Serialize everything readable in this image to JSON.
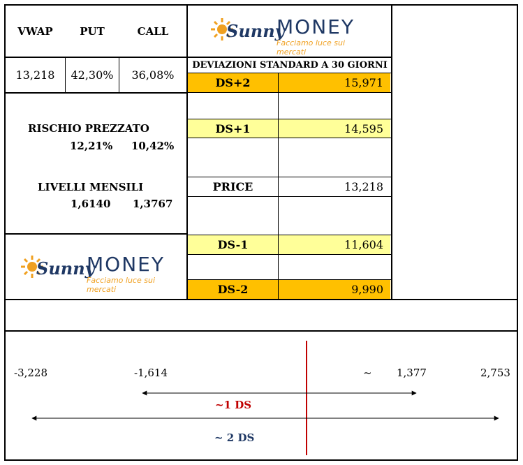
{
  "header": {
    "vwap_label": "VWAP",
    "put_label": "PUT",
    "call_label": "CALL",
    "vwap_value": "13,218",
    "put_value": "42,30%",
    "call_value": "36,08%"
  },
  "logo": {
    "sunny": "Sunny",
    "money": "MONEY",
    "tagline": "Facciamo luce sui mercati"
  },
  "risk": {
    "title": "RISCHIO PREZZATO",
    "put_pct": "12,21%",
    "call_pct": "10,42%"
  },
  "levels": {
    "title": "LIVELLI MENSILI",
    "low": "1,6140",
    "high": "1,3767"
  },
  "deviations": {
    "title": "DEVIAZIONI STANDARD A 30 GIORNI",
    "rows": [
      {
        "label": "DS+2",
        "value": "15,971"
      },
      {
        "label": "DS+1",
        "value": "14,595"
      },
      {
        "label": "PRICE",
        "value": "13,218"
      },
      {
        "label": "DS-1",
        "value": "11,604"
      },
      {
        "label": "DS-2",
        "value": "9,990"
      }
    ]
  },
  "range_chart": {
    "left_2ds": "-3,228",
    "left_1ds": "-1,614",
    "right_1ds_prefix": "~",
    "right_1ds": "1,377",
    "right_2ds": "2,753",
    "one_ds_label": "~1 DS",
    "two_ds_label": "~ 2 DS",
    "colors": {
      "one_ds": "#c00000",
      "two_ds": "#1f3864",
      "center_line": "#c00000"
    }
  }
}
